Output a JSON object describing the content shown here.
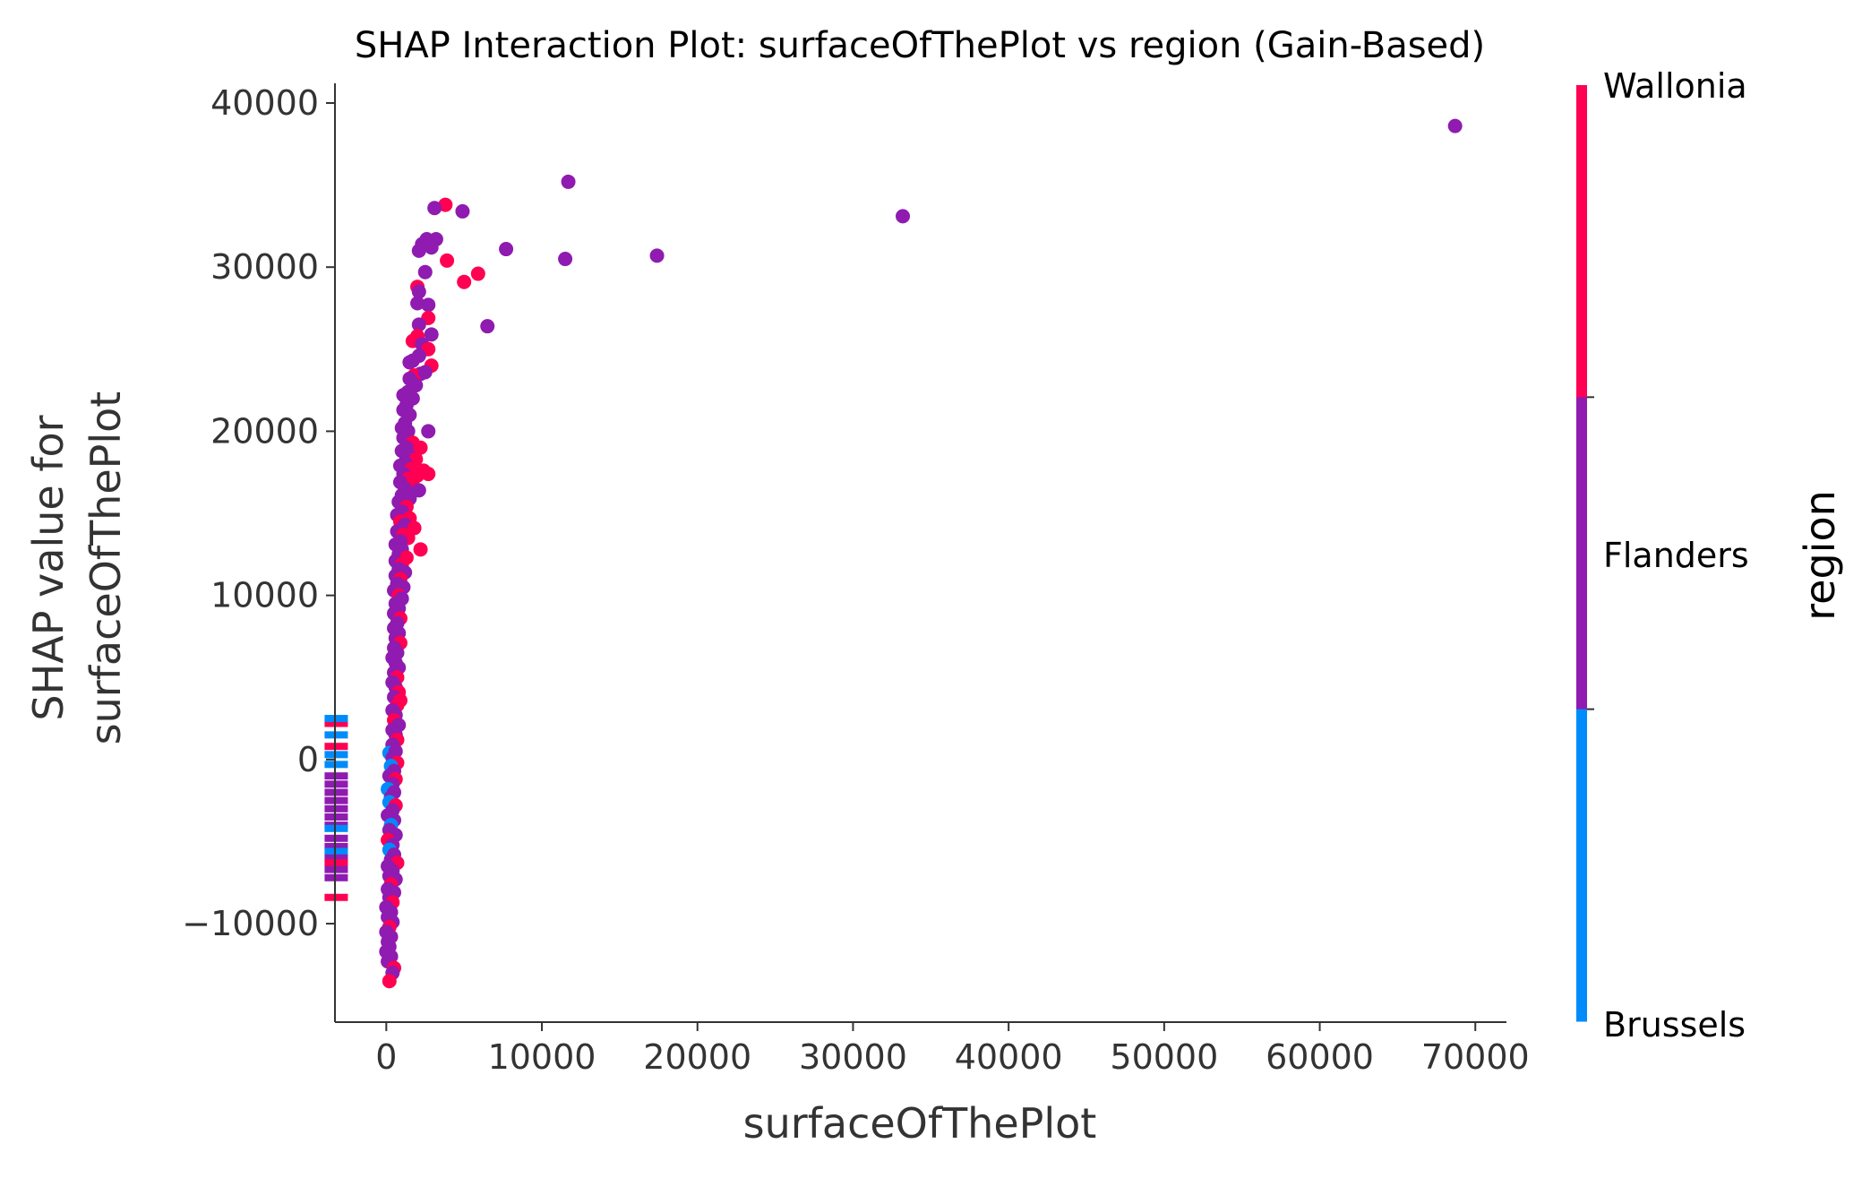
{
  "chart_data": {
    "type": "scatter",
    "title": "SHAP Interaction Plot: surfaceOfThePlot vs region (Gain-Based)",
    "xlabel": "surfaceOfThePlot",
    "ylabel_lines": [
      "SHAP value for",
      "surfaceOfThePlot"
    ],
    "xlim": [
      -3300,
      72000
    ],
    "ylim": [
      -16000,
      41200
    ],
    "x_ticks": [
      0,
      10000,
      20000,
      30000,
      40000,
      50000,
      60000,
      70000
    ],
    "x_tick_labels": [
      "0",
      "10000",
      "20000",
      "30000",
      "40000",
      "50000",
      "60000",
      "70000"
    ],
    "y_ticks": [
      -10000,
      0,
      10000,
      20000,
      30000,
      40000
    ],
    "y_tick_labels": [
      "−10000",
      "0",
      "10000",
      "20000",
      "30000",
      "40000"
    ],
    "grid": false,
    "colorbar": {
      "label": "region",
      "categories": [
        "Brussels",
        "Flanders",
        "Wallonia"
      ],
      "colors": {
        "Brussels": "#008bfb",
        "Flanders": "#8f1bb0",
        "Wallonia": "#ff0052"
      }
    },
    "missing_values": {
      "note_x": -2700,
      "ranges": [
        {
          "region": "Wallonia",
          "y": 2200
        },
        {
          "region": "Brussels",
          "y": 2500
        },
        {
          "region": "Brussels",
          "y": 1500
        },
        {
          "region": "Wallonia",
          "y": 800
        },
        {
          "region": "Brussels",
          "y": 300
        },
        {
          "region": "Brussels",
          "y": -300
        },
        {
          "region": "Flanders",
          "y": -1000
        },
        {
          "region": "Flanders",
          "y": -1500
        },
        {
          "region": "Flanders",
          "y": -2000
        },
        {
          "region": "Flanders",
          "y": -2500
        },
        {
          "region": "Flanders",
          "y": -3000
        },
        {
          "region": "Flanders",
          "y": -3500
        },
        {
          "region": "Flanders",
          "y": -4000
        },
        {
          "region": "Brussels",
          "y": -4200
        },
        {
          "region": "Flanders",
          "y": -4800
        },
        {
          "region": "Flanders",
          "y": -5300
        },
        {
          "region": "Brussels",
          "y": -5600
        },
        {
          "region": "Flanders",
          "y": -6000
        },
        {
          "region": "Wallonia",
          "y": -6300
        },
        {
          "region": "Flanders",
          "y": -6700
        },
        {
          "region": "Flanders",
          "y": -7200
        },
        {
          "region": "Wallonia",
          "y": -8400
        }
      ]
    },
    "points": [
      {
        "x": 68700,
        "y": 38600,
        "region": "Flanders"
      },
      {
        "x": 33200,
        "y": 33100,
        "region": "Flanders"
      },
      {
        "x": 17400,
        "y": 30700,
        "region": "Flanders"
      },
      {
        "x": 11700,
        "y": 35200,
        "region": "Flanders"
      },
      {
        "x": 11500,
        "y": 30500,
        "region": "Flanders"
      },
      {
        "x": 7700,
        "y": 31100,
        "region": "Flanders"
      },
      {
        "x": 6500,
        "y": 26400,
        "region": "Flanders"
      },
      {
        "x": 5900,
        "y": 29600,
        "region": "Wallonia"
      },
      {
        "x": 5000,
        "y": 29100,
        "region": "Wallonia"
      },
      {
        "x": 4900,
        "y": 33400,
        "region": "Flanders"
      },
      {
        "x": 3900,
        "y": 30400,
        "region": "Wallonia"
      },
      {
        "x": 3800,
        "y": 33800,
        "region": "Wallonia"
      },
      {
        "x": 3100,
        "y": 33600,
        "region": "Flanders"
      },
      {
        "x": 3200,
        "y": 31700,
        "region": "Flanders"
      },
      {
        "x": 2900,
        "y": 31200,
        "region": "Flanders"
      },
      {
        "x": 2600,
        "y": 31700,
        "region": "Flanders"
      },
      {
        "x": 2300,
        "y": 31400,
        "region": "Flanders"
      },
      {
        "x": 2100,
        "y": 31000,
        "region": "Flanders"
      },
      {
        "x": 2500,
        "y": 29700,
        "region": "Flanders"
      },
      {
        "x": 2000,
        "y": 28800,
        "region": "Wallonia"
      },
      {
        "x": 2100,
        "y": 28500,
        "region": "Flanders"
      },
      {
        "x": 2700,
        "y": 27700,
        "region": "Flanders"
      },
      {
        "x": 2000,
        "y": 27800,
        "region": "Flanders"
      },
      {
        "x": 2700,
        "y": 26900,
        "region": "Wallonia"
      },
      {
        "x": 2100,
        "y": 26500,
        "region": "Flanders"
      },
      {
        "x": 2900,
        "y": 25900,
        "region": "Flanders"
      },
      {
        "x": 2000,
        "y": 25800,
        "region": "Wallonia"
      },
      {
        "x": 1700,
        "y": 25500,
        "region": "Wallonia"
      },
      {
        "x": 2300,
        "y": 25300,
        "region": "Flanders"
      },
      {
        "x": 2700,
        "y": 25000,
        "region": "Wallonia"
      },
      {
        "x": 2100,
        "y": 24600,
        "region": "Flanders"
      },
      {
        "x": 1700,
        "y": 24300,
        "region": "Flanders"
      },
      {
        "x": 1500,
        "y": 24200,
        "region": "Flanders"
      },
      {
        "x": 2900,
        "y": 24000,
        "region": "Wallonia"
      },
      {
        "x": 2200,
        "y": 23500,
        "region": "Flanders"
      },
      {
        "x": 1800,
        "y": 23400,
        "region": "Wallonia"
      },
      {
        "x": 1500,
        "y": 23200,
        "region": "Flanders"
      },
      {
        "x": 2500,
        "y": 23600,
        "region": "Flanders"
      },
      {
        "x": 1900,
        "y": 22800,
        "region": "Flanders"
      },
      {
        "x": 1400,
        "y": 22400,
        "region": "Flanders"
      },
      {
        "x": 1100,
        "y": 22200,
        "region": "Flanders"
      },
      {
        "x": 1700,
        "y": 22000,
        "region": "Flanders"
      },
      {
        "x": 1300,
        "y": 21600,
        "region": "Flanders"
      },
      {
        "x": 1100,
        "y": 21300,
        "region": "Flanders"
      },
      {
        "x": 1500,
        "y": 21000,
        "region": "Flanders"
      },
      {
        "x": 1200,
        "y": 20500,
        "region": "Flanders"
      },
      {
        "x": 1000,
        "y": 20200,
        "region": "Flanders"
      },
      {
        "x": 1400,
        "y": 20000,
        "region": "Flanders"
      },
      {
        "x": 2700,
        "y": 20000,
        "region": "Flanders"
      },
      {
        "x": 1100,
        "y": 19600,
        "region": "Flanders"
      },
      {
        "x": 1700,
        "y": 19300,
        "region": "Wallonia"
      },
      {
        "x": 1300,
        "y": 19000,
        "region": "Flanders"
      },
      {
        "x": 2200,
        "y": 19000,
        "region": "Wallonia"
      },
      {
        "x": 1000,
        "y": 18800,
        "region": "Flanders"
      },
      {
        "x": 1500,
        "y": 18500,
        "region": "Flanders"
      },
      {
        "x": 1900,
        "y": 18300,
        "region": "Wallonia"
      },
      {
        "x": 1200,
        "y": 18100,
        "region": "Flanders"
      },
      {
        "x": 900,
        "y": 17900,
        "region": "Flanders"
      },
      {
        "x": 1600,
        "y": 17700,
        "region": "Wallonia"
      },
      {
        "x": 2400,
        "y": 17600,
        "region": "Wallonia"
      },
      {
        "x": 2700,
        "y": 17400,
        "region": "Wallonia"
      },
      {
        "x": 1100,
        "y": 17400,
        "region": "Flanders"
      },
      {
        "x": 2000,
        "y": 17300,
        "region": "Wallonia"
      },
      {
        "x": 1400,
        "y": 17100,
        "region": "Wallonia"
      },
      {
        "x": 900,
        "y": 16900,
        "region": "Flanders"
      },
      {
        "x": 1700,
        "y": 16700,
        "region": "Wallonia"
      },
      {
        "x": 1200,
        "y": 16500,
        "region": "Flanders"
      },
      {
        "x": 2100,
        "y": 16400,
        "region": "Flanders"
      },
      {
        "x": 1000,
        "y": 16100,
        "region": "Flanders"
      },
      {
        "x": 1500,
        "y": 15900,
        "region": "Flanders"
      },
      {
        "x": 800,
        "y": 15700,
        "region": "Flanders"
      },
      {
        "x": 1300,
        "y": 15400,
        "region": "Wallonia"
      },
      {
        "x": 1000,
        "y": 15100,
        "region": "Flanders"
      },
      {
        "x": 700,
        "y": 14900,
        "region": "Flanders"
      },
      {
        "x": 1500,
        "y": 14700,
        "region": "Wallonia"
      },
      {
        "x": 900,
        "y": 14500,
        "region": "Wallonia"
      },
      {
        "x": 1200,
        "y": 14300,
        "region": "Flanders"
      },
      {
        "x": 1800,
        "y": 14100,
        "region": "Wallonia"
      },
      {
        "x": 700,
        "y": 13900,
        "region": "Flanders"
      },
      {
        "x": 1100,
        "y": 13700,
        "region": "Wallonia"
      },
      {
        "x": 1400,
        "y": 13500,
        "region": "Wallonia"
      },
      {
        "x": 900,
        "y": 13300,
        "region": "Flanders"
      },
      {
        "x": 600,
        "y": 13100,
        "region": "Flanders"
      },
      {
        "x": 2200,
        "y": 12800,
        "region": "Wallonia"
      },
      {
        "x": 1000,
        "y": 12800,
        "region": "Flanders"
      },
      {
        "x": 800,
        "y": 12500,
        "region": "Flanders"
      },
      {
        "x": 1300,
        "y": 12300,
        "region": "Wallonia"
      },
      {
        "x": 600,
        "y": 12100,
        "region": "Flanders"
      },
      {
        "x": 1000,
        "y": 11900,
        "region": "Wallonia"
      },
      {
        "x": 800,
        "y": 11600,
        "region": "Flanders"
      },
      {
        "x": 1200,
        "y": 11400,
        "region": "Flanders"
      },
      {
        "x": 600,
        "y": 11200,
        "region": "Flanders"
      },
      {
        "x": 900,
        "y": 11000,
        "region": "Wallonia"
      },
      {
        "x": 700,
        "y": 10700,
        "region": "Flanders"
      },
      {
        "x": 1100,
        "y": 10500,
        "region": "Flanders"
      },
      {
        "x": 500,
        "y": 10300,
        "region": "Flanders"
      },
      {
        "x": 800,
        "y": 10000,
        "region": "Wallonia"
      },
      {
        "x": 1000,
        "y": 9800,
        "region": "Flanders"
      },
      {
        "x": 600,
        "y": 9500,
        "region": "Flanders"
      },
      {
        "x": 800,
        "y": 9200,
        "region": "Flanders"
      },
      {
        "x": 500,
        "y": 8900,
        "region": "Flanders"
      },
      {
        "x": 900,
        "y": 8600,
        "region": "Wallonia"
      },
      {
        "x": 700,
        "y": 8300,
        "region": "Flanders"
      },
      {
        "x": 500,
        "y": 8000,
        "region": "Flanders"
      },
      {
        "x": 800,
        "y": 7700,
        "region": "Flanders"
      },
      {
        "x": 600,
        "y": 7400,
        "region": "Flanders"
      },
      {
        "x": 900,
        "y": 7100,
        "region": "Wallonia"
      },
      {
        "x": 500,
        "y": 6800,
        "region": "Flanders"
      },
      {
        "x": 700,
        "y": 6500,
        "region": "Flanders"
      },
      {
        "x": 400,
        "y": 6200,
        "region": "Flanders"
      },
      {
        "x": 600,
        "y": 5900,
        "region": "Flanders"
      },
      {
        "x": 800,
        "y": 5600,
        "region": "Flanders"
      },
      {
        "x": 500,
        "y": 5300,
        "region": "Flanders"
      },
      {
        "x": 700,
        "y": 5000,
        "region": "Wallonia"
      },
      {
        "x": 400,
        "y": 4700,
        "region": "Flanders"
      },
      {
        "x": 600,
        "y": 4400,
        "region": "Flanders"
      },
      {
        "x": 800,
        "y": 4100,
        "region": "Wallonia"
      },
      {
        "x": 500,
        "y": 3800,
        "region": "Flanders"
      },
      {
        "x": 900,
        "y": 3600,
        "region": "Wallonia"
      },
      {
        "x": 700,
        "y": 3300,
        "region": "Wallonia"
      },
      {
        "x": 400,
        "y": 3000,
        "region": "Flanders"
      },
      {
        "x": 600,
        "y": 2700,
        "region": "Flanders"
      },
      {
        "x": 500,
        "y": 2400,
        "region": "Wallonia"
      },
      {
        "x": 800,
        "y": 2100,
        "region": "Flanders"
      },
      {
        "x": 400,
        "y": 1800,
        "region": "Flanders"
      },
      {
        "x": 600,
        "y": 1500,
        "region": "Flanders"
      },
      {
        "x": 700,
        "y": 1200,
        "region": "Wallonia"
      },
      {
        "x": 400,
        "y": 900,
        "region": "Flanders"
      },
      {
        "x": 200,
        "y": 400,
        "region": "Brussels"
      },
      {
        "x": 600,
        "y": 500,
        "region": "Flanders"
      },
      {
        "x": 400,
        "y": 100,
        "region": "Flanders"
      },
      {
        "x": 700,
        "y": -200,
        "region": "Wallonia"
      },
      {
        "x": 300,
        "y": -400,
        "region": "Brussels"
      },
      {
        "x": 500,
        "y": -700,
        "region": "Flanders"
      },
      {
        "x": 200,
        "y": -1000,
        "region": "Flanders"
      },
      {
        "x": 600,
        "y": -1200,
        "region": "Wallonia"
      },
      {
        "x": 400,
        "y": -1500,
        "region": "Flanders"
      },
      {
        "x": 100,
        "y": -1800,
        "region": "Brussels"
      },
      {
        "x": 500,
        "y": -2000,
        "region": "Flanders"
      },
      {
        "x": 300,
        "y": -2300,
        "region": "Flanders"
      },
      {
        "x": 200,
        "y": -2600,
        "region": "Brussels"
      },
      {
        "x": 600,
        "y": -2800,
        "region": "Wallonia"
      },
      {
        "x": 400,
        "y": -3100,
        "region": "Flanders"
      },
      {
        "x": 100,
        "y": -3400,
        "region": "Flanders"
      },
      {
        "x": 500,
        "y": -3700,
        "region": "Flanders"
      },
      {
        "x": 300,
        "y": -4000,
        "region": "Brussels"
      },
      {
        "x": 200,
        "y": -4300,
        "region": "Flanders"
      },
      {
        "x": 600,
        "y": -4600,
        "region": "Flanders"
      },
      {
        "x": 100,
        "y": -4900,
        "region": "Wallonia"
      },
      {
        "x": 400,
        "y": -5200,
        "region": "Flanders"
      },
      {
        "x": 200,
        "y": -5500,
        "region": "Brussels"
      },
      {
        "x": 500,
        "y": -5800,
        "region": "Flanders"
      },
      {
        "x": 300,
        "y": -6100,
        "region": "Flanders"
      },
      {
        "x": 700,
        "y": -6300,
        "region": "Wallonia"
      },
      {
        "x": 100,
        "y": -6500,
        "region": "Flanders"
      },
      {
        "x": 400,
        "y": -6800,
        "region": "Flanders"
      },
      {
        "x": 200,
        "y": -7100,
        "region": "Flanders"
      },
      {
        "x": 600,
        "y": -7300,
        "region": "Flanders"
      },
      {
        "x": 300,
        "y": -7600,
        "region": "Wallonia"
      },
      {
        "x": 100,
        "y": -7900,
        "region": "Flanders"
      },
      {
        "x": 500,
        "y": -8100,
        "region": "Flanders"
      },
      {
        "x": 200,
        "y": -8400,
        "region": "Flanders"
      },
      {
        "x": 400,
        "y": -8700,
        "region": "Wallonia"
      },
      {
        "x": 0,
        "y": -9000,
        "region": "Flanders"
      },
      {
        "x": 300,
        "y": -9300,
        "region": "Flanders"
      },
      {
        "x": 100,
        "y": -9600,
        "region": "Flanders"
      },
      {
        "x": 400,
        "y": -9900,
        "region": "Flanders"
      },
      {
        "x": 200,
        "y": -10200,
        "region": "Wallonia"
      },
      {
        "x": 0,
        "y": -10500,
        "region": "Flanders"
      },
      {
        "x": 300,
        "y": -10800,
        "region": "Flanders"
      },
      {
        "x": 100,
        "y": -11100,
        "region": "Flanders"
      },
      {
        "x": 200,
        "y": -11400,
        "region": "Flanders"
      },
      {
        "x": 0,
        "y": -11700,
        "region": "Flanders"
      },
      {
        "x": 300,
        "y": -12000,
        "region": "Flanders"
      },
      {
        "x": 100,
        "y": -12300,
        "region": "Flanders"
      },
      {
        "x": 500,
        "y": -12700,
        "region": "Wallonia"
      },
      {
        "x": 400,
        "y": -13000,
        "region": "Flanders"
      },
      {
        "x": 200,
        "y": -13500,
        "region": "Wallonia"
      }
    ]
  }
}
